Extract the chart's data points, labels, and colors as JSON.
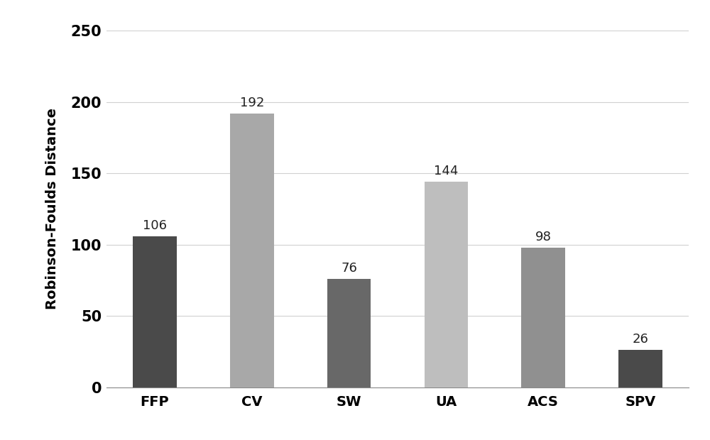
{
  "categories": [
    "FFP",
    "CV",
    "SW",
    "UA",
    "ACS",
    "SPV"
  ],
  "values": [
    106,
    192,
    76,
    144,
    98,
    26
  ],
  "bar_colors": [
    "#4a4a4a",
    "#a8a8a8",
    "#686868",
    "#bebebe",
    "#909090",
    "#4a4a4a"
  ],
  "ylabel": "Robinson-Foulds Distance",
  "ylim": [
    0,
    250
  ],
  "yticks": [
    0,
    50,
    100,
    150,
    200,
    250
  ],
  "background_color": "#ffffff",
  "value_fontsize": 13,
  "label_fontsize": 14,
  "ylabel_fontsize": 14,
  "ytick_fontsize": 15,
  "grid_color": "#d0d0d0",
  "bar_width": 0.45
}
